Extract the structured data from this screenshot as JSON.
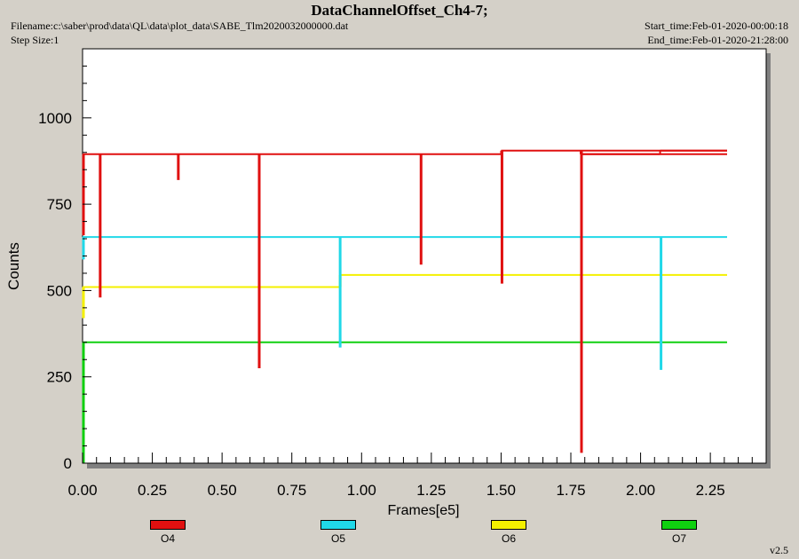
{
  "header": {
    "title": "DataChannelOffset_Ch4-7;",
    "filename": "Filename:c:\\saber\\prod\\data\\QL\\data\\plot_data\\SABE_Tlm2020032000000.dat",
    "step_size": "Step Size:1",
    "start_time": "Start_time:Feb-01-2020-00:00:18",
    "end_time": "End_time:Feb-01-2020-21:28:00"
  },
  "version": "v2.5",
  "colors": {
    "background": "#d4d0c8",
    "plot_bg": "#ffffff",
    "O4": "#e01010",
    "O5": "#20d8e8",
    "O6": "#f4f000",
    "O7": "#10d010"
  },
  "chart_data": {
    "type": "line",
    "xlabel": "Frames[e5]",
    "ylabel": "Counts",
    "xlim": [
      0,
      2.45
    ],
    "ylim": [
      0,
      1200
    ],
    "xticks": [
      "0.00",
      "0.25",
      "0.50",
      "0.75",
      "1.00",
      "1.25",
      "1.50",
      "1.75",
      "2.00",
      "2.25"
    ],
    "yticks": [
      "0",
      "250",
      "500",
      "750",
      "1000"
    ],
    "legend_position": "bottom",
    "series": [
      {
        "name": "O4",
        "color": "#e01010",
        "segments": [
          [
            0.0,
            2.31,
            895
          ]
        ],
        "level_changes": [
          [
            1.5,
            905
          ],
          [
            1.785,
            895
          ],
          [
            2.07,
            905
          ]
        ],
        "spikes": [
          [
            0.0,
            895,
            660
          ],
          [
            0.06,
            895,
            480
          ],
          [
            0.34,
            895,
            820
          ],
          [
            0.63,
            895,
            275
          ],
          [
            1.21,
            895,
            575
          ],
          [
            1.5,
            905,
            520
          ],
          [
            1.785,
            905,
            30
          ]
        ]
      },
      {
        "name": "O5",
        "color": "#20d8e8",
        "segments": [
          [
            0.0,
            2.31,
            655
          ]
        ],
        "spikes": [
          [
            0.0,
            655,
            590
          ],
          [
            0.92,
            655,
            335
          ],
          [
            2.07,
            655,
            270
          ]
        ]
      },
      {
        "name": "O6",
        "color": "#f4f000",
        "segments": [
          [
            0.0,
            0.92,
            510
          ],
          [
            0.92,
            2.31,
            545
          ]
        ],
        "spikes": [
          [
            0.0,
            510,
            420
          ],
          [
            0.92,
            510,
            545
          ]
        ]
      },
      {
        "name": "O7",
        "color": "#10d010",
        "segments": [
          [
            0.0,
            2.31,
            350
          ]
        ],
        "spikes": [
          [
            0.0,
            350,
            0
          ],
          [
            1.785,
            350,
            125
          ]
        ]
      }
    ]
  }
}
